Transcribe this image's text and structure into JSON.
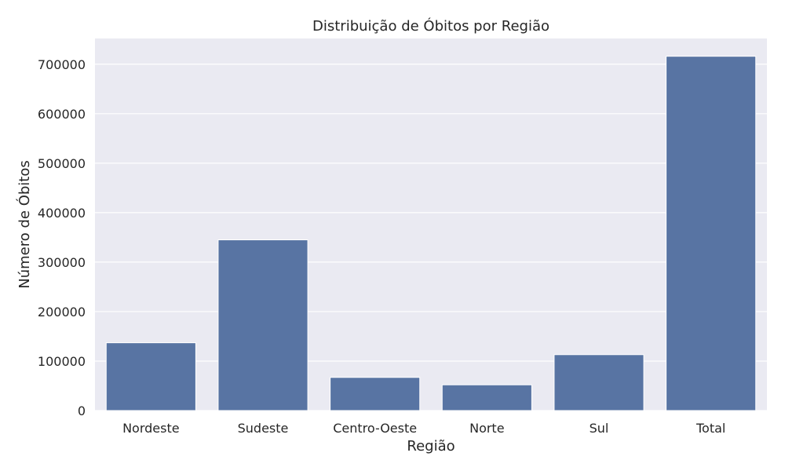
{
  "chart_data": {
    "type": "bar",
    "title": "Distribuição de Óbitos por Região",
    "xlabel": "Região",
    "ylabel": "Número de Óbitos",
    "categories": [
      "Nordeste",
      "Sudeste",
      "Centro-Oeste",
      "Norte",
      "Sul",
      "Total"
    ],
    "values": [
      137000,
      345000,
      67000,
      52000,
      113000,
      716000
    ],
    "ylim": [
      0,
      752000
    ],
    "yticks": [
      0,
      100000,
      200000,
      300000,
      400000,
      500000,
      600000,
      700000
    ],
    "ytick_labels": [
      "0",
      "100000",
      "200000",
      "300000",
      "400000",
      "500000",
      "600000",
      "700000"
    ],
    "grid": true,
    "colors": {
      "bar": "#5874a3",
      "background": "#eaeaf2",
      "grid": "#ffffff",
      "text": "#262626"
    }
  }
}
